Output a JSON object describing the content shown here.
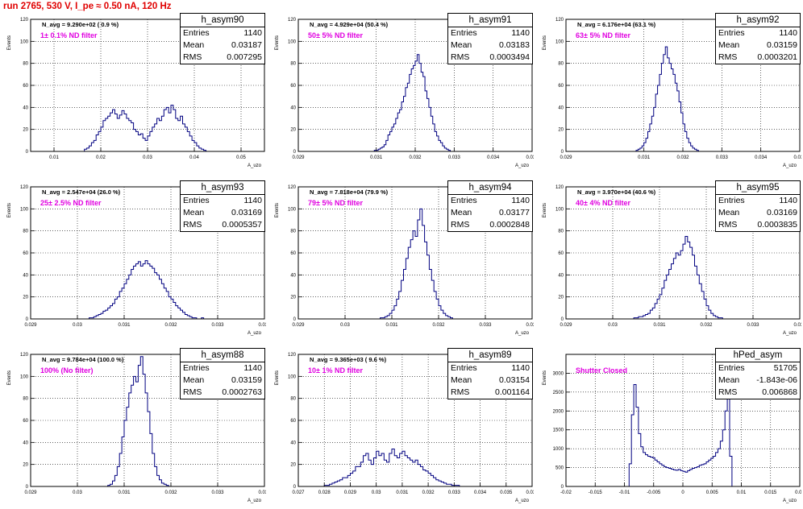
{
  "page_title": "run 2765,   530 V, I_pe ≈ 0.50 nA, 120 Hz",
  "colors": {
    "title": "#e00000",
    "histogram": "#000080",
    "filter_text": "#e000e0"
  },
  "chart_data": [
    {
      "type": "histogram",
      "name": "h_asym90",
      "navg": "N_avg = 9.290e+02 ( 0.9 %)",
      "filter_label": "1± 0.1% ND filter",
      "stats": {
        "entries": "1140",
        "mean": "0.03187",
        "rms": "0.007295"
      },
      "ylabel": "Events",
      "xlabel": "A_uzo",
      "xlim": [
        0.005,
        0.055
      ],
      "ylim": [
        0,
        120
      ],
      "xticks": [
        "0.01",
        "0.02",
        "0.03",
        "0.04",
        "0.05"
      ],
      "xtick_values": [
        0.01,
        0.02,
        0.03,
        0.04,
        0.05
      ],
      "yticks": [
        0,
        20,
        40,
        60,
        80,
        100,
        120
      ],
      "grid": true,
      "bins_start": 0.005,
      "bin_width": 0.0005,
      "values": [
        0,
        0,
        0,
        0,
        0,
        0,
        0,
        0,
        0,
        0,
        0,
        0,
        0,
        0,
        0,
        0,
        0,
        0,
        0,
        0,
        0,
        0,
        0,
        2,
        3,
        5,
        8,
        10,
        15,
        18,
        22,
        28,
        30,
        32,
        35,
        38,
        34,
        30,
        33,
        37,
        34,
        30,
        28,
        26,
        20,
        18,
        15,
        16,
        12,
        10,
        14,
        18,
        22,
        25,
        30,
        28,
        32,
        38,
        40,
        35,
        42,
        38,
        30,
        28,
        32,
        25,
        22,
        18,
        14,
        10,
        8,
        5,
        3,
        2,
        1,
        0,
        0,
        0,
        0,
        0,
        0,
        0,
        0,
        0,
        0,
        0,
        0,
        0,
        0,
        0,
        0,
        0,
        0,
        0,
        0,
        0,
        0,
        0,
        0,
        0
      ]
    },
    {
      "type": "histogram",
      "name": "h_asym91",
      "navg": "N_avg = 4.929e+04 (50.4 %)",
      "filter_label": "50± 5% ND filter",
      "stats": {
        "entries": "1140",
        "mean": "0.03183",
        "rms": "0.0003494"
      },
      "ylabel": "Events",
      "xlabel": "A_uzo",
      "xlim": [
        0.029,
        0.035
      ],
      "ylim": [
        0,
        120
      ],
      "xticks": [
        "0.029",
        "0.031",
        "0.032",
        "0.033",
        "0.034",
        "0.035"
      ],
      "xtick_values": [
        0.029,
        0.031,
        0.032,
        0.033,
        0.034,
        0.035
      ],
      "yticks": [
        0,
        20,
        40,
        60,
        80,
        100,
        120
      ],
      "grid": true,
      "bins_start": 0.03,
      "bin_width": 5e-05,
      "values": [
        0,
        0,
        0,
        0,
        0,
        0,
        0,
        0,
        0,
        0,
        0,
        0,
        0,
        0,
        0,
        0,
        0,
        0,
        0,
        1,
        1,
        2,
        3,
        4,
        6,
        10,
        15,
        18,
        22,
        25,
        30,
        35,
        38,
        45,
        50,
        58,
        62,
        70,
        75,
        78,
        82,
        88,
        80,
        72,
        68,
        55,
        48,
        40,
        32,
        25,
        18,
        14,
        10,
        8,
        5,
        3,
        2,
        1,
        0,
        0,
        0,
        0,
        0,
        0,
        0,
        0,
        0,
        0,
        0,
        0,
        0,
        0,
        0,
        0,
        0,
        0,
        0,
        0,
        0,
        0
      ]
    },
    {
      "type": "histogram",
      "name": "h_asym92",
      "navg": "N_avg = 6.176e+04 (63.1 %)",
      "filter_label": "63± 5% ND filter",
      "stats": {
        "entries": "1140",
        "mean": "0.03159",
        "rms": "0.0003201"
      },
      "ylabel": "Events",
      "xlabel": "A_uzo",
      "xlim": [
        0.029,
        0.035
      ],
      "ylim": [
        0,
        120
      ],
      "xticks": [
        "0.029",
        "0.031",
        "0.032",
        "0.033",
        "0.034",
        "0.035"
      ],
      "xtick_values": [
        0.029,
        0.031,
        0.032,
        0.033,
        0.034,
        0.035
      ],
      "yticks": [
        0,
        20,
        40,
        60,
        80,
        100,
        120
      ],
      "grid": true,
      "bins_start": 0.03,
      "bin_width": 5e-05,
      "values": [
        0,
        0,
        0,
        0,
        0,
        0,
        0,
        0,
        0,
        0,
        0,
        0,
        0,
        0,
        0,
        0,
        1,
        2,
        3,
        5,
        8,
        12,
        18,
        25,
        32,
        40,
        52,
        60,
        70,
        80,
        88,
        95,
        85,
        80,
        75,
        70,
        62,
        55,
        45,
        35,
        25,
        18,
        12,
        8,
        5,
        3,
        2,
        1,
        0,
        0,
        0,
        0,
        0,
        0,
        0,
        0,
        0,
        0,
        0,
        0,
        0,
        0,
        0,
        0,
        0,
        0,
        0,
        0,
        0,
        0,
        0,
        0,
        0,
        0,
        0,
        0,
        0,
        0,
        0,
        0
      ]
    },
    {
      "type": "histogram",
      "name": "h_asym93",
      "navg": "N_avg = 2.547e+04 (26.0 %)",
      "filter_label": "25± 2.5% ND filter",
      "stats": {
        "entries": "1140",
        "mean": "0.03169",
        "rms": "0.0005357"
      },
      "ylabel": "Events",
      "xlabel": "A_uzo",
      "xlim": [
        0.029,
        0.034
      ],
      "ylim": [
        0,
        120
      ],
      "xticks": [
        "0.029",
        "0.03",
        "0.031",
        "0.032",
        "0.033",
        "0.034"
      ],
      "xtick_values": [
        0.029,
        0.03,
        0.031,
        0.032,
        0.033,
        0.034
      ],
      "yticks": [
        0,
        20,
        40,
        60,
        80,
        100,
        120
      ],
      "grid": true,
      "bins_start": 0.0295,
      "bin_width": 5e-05,
      "values": [
        0,
        0,
        0,
        0,
        0,
        0,
        0,
        0,
        0,
        0,
        0,
        0,
        0,
        0,
        0,
        1,
        1,
        2,
        3,
        4,
        5,
        7,
        8,
        10,
        12,
        14,
        18,
        20,
        25,
        28,
        32,
        36,
        40,
        45,
        48,
        50,
        52,
        48,
        50,
        53,
        50,
        48,
        46,
        42,
        40,
        36,
        32,
        28,
        25,
        20,
        18,
        15,
        12,
        10,
        8,
        6,
        4,
        3,
        2,
        1,
        1,
        0,
        0,
        1,
        0,
        0,
        0,
        0,
        0,
        0,
        0,
        0,
        0,
        0,
        0,
        0,
        0,
        0,
        0,
        0,
        0,
        0,
        0,
        0,
        0,
        0,
        0,
        0,
        0,
        0,
        0,
        0,
        0,
        0,
        0,
        0,
        0,
        0,
        0,
        0
      ]
    },
    {
      "type": "histogram",
      "name": "h_asym94",
      "navg": "N_avg = 7.818e+04 (79.9 %)",
      "filter_label": "79± 5% ND filter",
      "stats": {
        "entries": "1140",
        "mean": "0.03177",
        "rms": "0.0002848"
      },
      "ylabel": "Events",
      "xlabel": "A_uzo",
      "xlim": [
        0.029,
        0.034
      ],
      "ylim": [
        0,
        120
      ],
      "xticks": [
        "0.029",
        "0.03",
        "0.031",
        "0.032",
        "0.033",
        "0.034"
      ],
      "xtick_values": [
        0.029,
        0.03,
        0.031,
        0.032,
        0.033,
        0.034
      ],
      "yticks": [
        0,
        20,
        40,
        60,
        80,
        100,
        120
      ],
      "grid": true,
      "bins_start": 0.0295,
      "bin_width": 5e-05,
      "values": [
        0,
        0,
        0,
        0,
        0,
        0,
        0,
        0,
        0,
        0,
        0,
        0,
        0,
        0,
        0,
        0,
        0,
        0,
        0,
        0,
        0,
        0,
        0,
        0,
        0,
        1,
        1,
        2,
        3,
        5,
        8,
        12,
        18,
        25,
        35,
        45,
        55,
        65,
        72,
        80,
        75,
        90,
        100,
        85,
        70,
        58,
        45,
        35,
        25,
        18,
        12,
        8,
        5,
        3,
        2,
        1,
        0,
        0,
        0,
        0,
        0,
        0,
        0,
        0,
        0,
        0,
        0,
        0,
        0,
        0,
        0,
        0,
        0,
        0,
        0,
        0,
        0,
        0,
        0,
        0,
        0,
        0,
        0,
        0,
        0,
        0,
        0,
        0,
        0,
        0,
        0,
        0,
        0,
        0,
        0,
        0,
        0,
        0,
        0,
        0
      ]
    },
    {
      "type": "histogram",
      "name": "h_asym95",
      "navg": "N_avg = 3.970e+04 (40.6 %)",
      "filter_label": "40± 4% ND filter",
      "stats": {
        "entries": "1140",
        "mean": "0.03169",
        "rms": "0.0003835"
      },
      "ylabel": "Events",
      "xlabel": "A_uzo",
      "xlim": [
        0.029,
        0.034
      ],
      "ylim": [
        0,
        120
      ],
      "xticks": [
        "0.029",
        "0.03",
        "0.031",
        "0.032",
        "0.033",
        "0.034"
      ],
      "xtick_values": [
        0.029,
        0.03,
        0.031,
        0.032,
        0.033,
        0.034
      ],
      "yticks": [
        0,
        20,
        40,
        60,
        80,
        100,
        120
      ],
      "grid": true,
      "bins_start": 0.0295,
      "bin_width": 5e-05,
      "values": [
        0,
        0,
        0,
        0,
        0,
        0,
        0,
        0,
        0,
        0,
        0,
        0,
        0,
        0,
        0,
        0,
        0,
        0,
        0,
        1,
        1,
        2,
        2,
        3,
        4,
        5,
        8,
        10,
        14,
        18,
        22,
        28,
        35,
        40,
        45,
        50,
        55,
        60,
        58,
        62,
        68,
        75,
        70,
        65,
        58,
        48,
        40,
        32,
        25,
        18,
        12,
        8,
        5,
        3,
        2,
        1,
        1,
        0,
        0,
        0,
        0,
        0,
        0,
        0,
        0,
        0,
        0,
        0,
        0,
        0,
        0,
        0,
        0,
        0,
        0,
        0,
        0,
        0,
        0,
        0,
        0,
        0,
        0,
        0,
        0,
        0,
        0,
        0,
        0,
        0,
        0,
        0,
        0,
        0,
        0,
        0,
        0,
        0,
        0,
        0
      ]
    },
    {
      "type": "histogram",
      "name": "h_asym88",
      "navg": "N_avg = 9.784e+04 (100.0 %)",
      "filter_label": "100% (No filter)",
      "stats": {
        "entries": "1140",
        "mean": "0.03159",
        "rms": "0.0002763"
      },
      "ylabel": "Events",
      "xlabel": "A_uzo",
      "xlim": [
        0.029,
        0.034
      ],
      "ylim": [
        0,
        120
      ],
      "xticks": [
        "0.029",
        "0.03",
        "0.031",
        "0.032",
        "0.033",
        "0.034"
      ],
      "xtick_values": [
        0.029,
        0.03,
        0.031,
        0.032,
        0.033,
        0.034
      ],
      "yticks": [
        0,
        20,
        40,
        60,
        80,
        100,
        120
      ],
      "grid": true,
      "bins_start": 0.0295,
      "bin_width": 5e-05,
      "values": [
        0,
        0,
        0,
        0,
        0,
        0,
        0,
        0,
        0,
        0,
        0,
        0,
        0,
        0,
        0,
        0,
        0,
        0,
        0,
        0,
        0,
        0,
        0,
        1,
        2,
        5,
        10,
        18,
        30,
        45,
        60,
        72,
        85,
        92,
        100,
        95,
        110,
        118,
        102,
        85,
        68,
        48,
        30,
        18,
        10,
        6,
        3,
        2,
        1,
        0,
        0,
        0,
        0,
        0,
        0,
        0,
        0,
        0,
        0,
        0,
        0,
        0,
        0,
        0,
        0,
        0,
        0,
        0,
        0,
        0,
        0,
        0,
        0,
        0,
        0,
        0,
        0,
        0,
        0,
        0,
        0,
        0,
        0,
        0,
        0,
        0,
        0,
        0,
        0,
        0,
        0,
        0,
        0,
        0,
        0,
        0,
        0,
        0,
        0,
        0
      ]
    },
    {
      "type": "histogram",
      "name": "h_asym89",
      "navg": "N_avg = 9.365e+03 ( 9.6 %)",
      "filter_label": "10± 1% ND filter",
      "stats": {
        "entries": "1140",
        "mean": "0.03154",
        "rms": "0.001164"
      },
      "ylabel": "Events",
      "xlabel": "A_uzo",
      "xlim": [
        0.027,
        0.036
      ],
      "ylim": [
        0,
        120
      ],
      "xticks": [
        "0.027",
        "0.028",
        "0.029",
        "0.03",
        "0.031",
        "0.032",
        "0.033",
        "0.034",
        "0.035",
        "0.036"
      ],
      "xtick_values": [
        0.027,
        0.028,
        0.029,
        0.03,
        0.031,
        0.032,
        0.033,
        0.034,
        0.035,
        0.036
      ],
      "yticks": [
        0,
        20,
        40,
        60,
        80,
        100,
        120
      ],
      "grid": true,
      "bins_start": 0.0275,
      "bin_width": 0.0001,
      "values": [
        0,
        0,
        0,
        0,
        0,
        1,
        1,
        2,
        3,
        4,
        5,
        6,
        8,
        8,
        10,
        12,
        14,
        18,
        18,
        22,
        28,
        30,
        24,
        20,
        26,
        32,
        28,
        30,
        24,
        22,
        30,
        34,
        28,
        26,
        30,
        32,
        28,
        26,
        24,
        22,
        24,
        20,
        18,
        15,
        14,
        12,
        10,
        8,
        6,
        5,
        4,
        3,
        2,
        2,
        1,
        1,
        1,
        0,
        0,
        0,
        0,
        0,
        0,
        0,
        0,
        0,
        0,
        0,
        0,
        0,
        0,
        0,
        0,
        0,
        0,
        0,
        0,
        0,
        0,
        0,
        0,
        0,
        0,
        0,
        0,
        0
      ]
    },
    {
      "type": "histogram",
      "name": "hPed_asym",
      "navg": "",
      "filter_label": "Shutter Closed",
      "stats": {
        "entries": "51705",
        "mean": "-1.843e-06",
        "rms": "0.006868"
      },
      "ylabel": "Events",
      "xlabel": "A_uzo",
      "xlim": [
        -0.02,
        0.02
      ],
      "ylim": [
        0,
        3500
      ],
      "xticks": [
        "-0.02",
        "-0.015",
        "-0.01",
        "-0.005",
        "0",
        "0.005",
        "0.01",
        "0.015",
        "0.02"
      ],
      "xtick_values": [
        -0.02,
        -0.015,
        -0.01,
        -0.005,
        0,
        0.005,
        0.01,
        0.015,
        0.02
      ],
      "yticks": [
        0,
        500,
        1000,
        1500,
        2000,
        2500,
        3000
      ],
      "grid": true,
      "bins_start": -0.02,
      "bin_width": 0.0004,
      "values": [
        0,
        0,
        0,
        0,
        0,
        0,
        0,
        0,
        0,
        0,
        0,
        0,
        0,
        0,
        0,
        0,
        0,
        0,
        0,
        0,
        0,
        0,
        0,
        0,
        0,
        0,
        0,
        600,
        1900,
        2700,
        2100,
        1400,
        1050,
        900,
        840,
        800,
        780,
        760,
        700,
        650,
        600,
        560,
        520,
        500,
        480,
        460,
        440,
        430,
        450,
        420,
        400,
        380,
        420,
        450,
        480,
        500,
        520,
        560,
        580,
        600,
        650,
        700,
        750,
        800,
        900,
        1000,
        1200,
        1500,
        2000,
        3200,
        800,
        0,
        0,
        0,
        0,
        0,
        0,
        0,
        0,
        0,
        0,
        0,
        0,
        0,
        0,
        0,
        0,
        0,
        0,
        0,
        0,
        0,
        0,
        0,
        0,
        0,
        0,
        0,
        0,
        0
      ]
    }
  ]
}
